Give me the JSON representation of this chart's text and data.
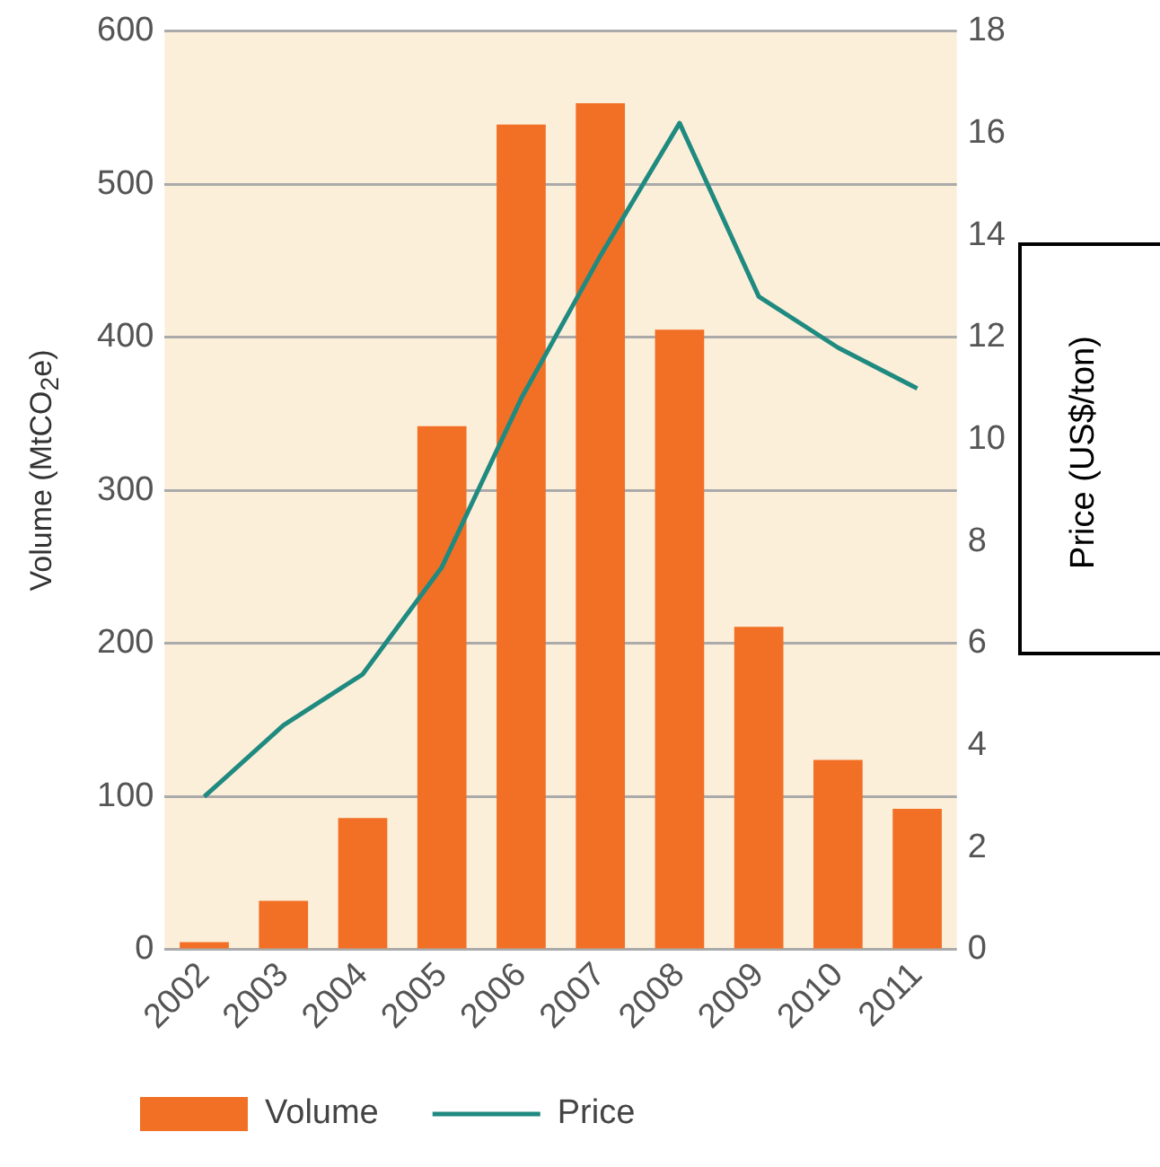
{
  "chart_data": {
    "type": "bar",
    "ylabel": "Volume (MtCO$_{2}$e)",
    "y2label": "Price (US$/ton)",
    "categories": [
      "2002",
      "2003",
      "2004",
      "2005",
      "2006",
      "2007",
      "2008",
      "2009",
      "2010",
      "2011"
    ],
    "series": [
      {
        "name": "Volume",
        "color": "#f26f26",
        "values": [
          5,
          32,
          86,
          342,
          539,
          553,
          405,
          211,
          124,
          92
        ]
      },
      {
        "name": "Price",
        "type": "line",
        "axis": "y2",
        "color": "#1f8a80",
        "marker": "none",
        "values": [
          3.0,
          4.4,
          5.4,
          7.5,
          10.8,
          13.6,
          16.2,
          12.8,
          11.8,
          11.0
        ]
      }
    ],
    "ylim": [
      0,
      600
    ],
    "yticks": [
      0,
      100,
      200,
      300,
      400,
      500,
      600
    ],
    "y2lim": [
      0,
      18
    ],
    "y2ticks": [
      0,
      2,
      4,
      6,
      8,
      10,
      12,
      14,
      16,
      18
    ],
    "grid": "y",
    "legend": "bottom left"
  }
}
